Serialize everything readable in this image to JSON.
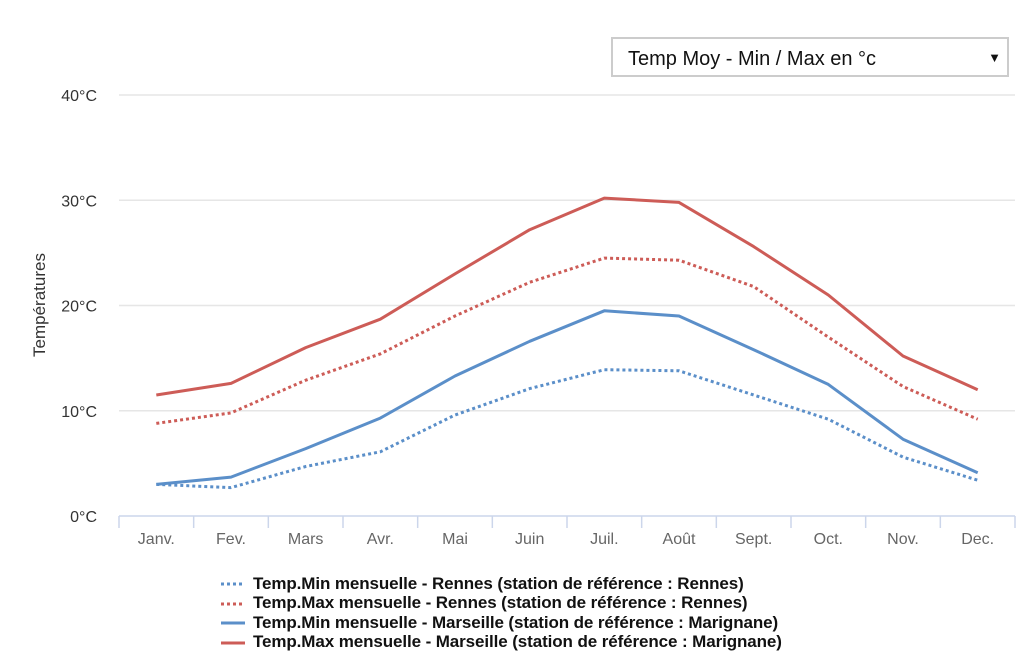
{
  "selector": {
    "selected_label": "Temp Moy - Min / Max en °c",
    "arrow_icon": "triangle-down-icon",
    "arrow_glyph": "▼"
  },
  "colors": {
    "blue": "#5b8fc9",
    "red": "#cd5c57",
    "grid": "#e6e6e6",
    "axis": "#ccd6eb",
    "tick_text": "#666666",
    "ytick_text": "#333333"
  },
  "chart_data": {
    "type": "line",
    "title": "",
    "xlabel": "",
    "ylabel": "Températures",
    "categories": [
      "Janv.",
      "Fev.",
      "Mars",
      "Avr.",
      "Mai",
      "Juin",
      "Juil.",
      "Août",
      "Sept.",
      "Oct.",
      "Nov.",
      "Dec."
    ],
    "yticks": [
      0,
      10,
      20,
      30,
      40
    ],
    "ytick_labels": [
      "0°C",
      "10°C",
      "20°C",
      "30°C",
      "40°C"
    ],
    "ylim": [
      0,
      40
    ],
    "grid": true,
    "legend_position": "bottom",
    "series": [
      {
        "name": "Temp.Min mensuelle - Rennes (station de référence : Rennes)",
        "color": "#5b8fc9",
        "style": "dotted",
        "values": [
          3.0,
          2.7,
          4.7,
          6.1,
          9.6,
          12.1,
          13.9,
          13.8,
          11.5,
          9.2,
          5.6,
          3.4
        ]
      },
      {
        "name": "Temp.Max mensuelle - Rennes (station de référence : Rennes)",
        "color": "#cd5c57",
        "style": "dotted",
        "values": [
          8.8,
          9.8,
          12.9,
          15.4,
          19.0,
          22.2,
          24.5,
          24.3,
          21.8,
          17.0,
          12.3,
          9.2
        ]
      },
      {
        "name": "Temp.Min mensuelle - Marseille (station de référence : Marignane)",
        "color": "#5b8fc9",
        "style": "solid",
        "values": [
          3.0,
          3.7,
          6.4,
          9.3,
          13.3,
          16.6,
          19.5,
          19.0,
          15.8,
          12.5,
          7.3,
          4.1
        ]
      },
      {
        "name": "Temp.Max mensuelle - Marseille (station de référence : Marignane)",
        "color": "#cd5c57",
        "style": "solid",
        "values": [
          11.5,
          12.6,
          16.0,
          18.7,
          23.0,
          27.2,
          30.2,
          29.8,
          25.6,
          21.0,
          15.2,
          12.0
        ]
      }
    ]
  }
}
